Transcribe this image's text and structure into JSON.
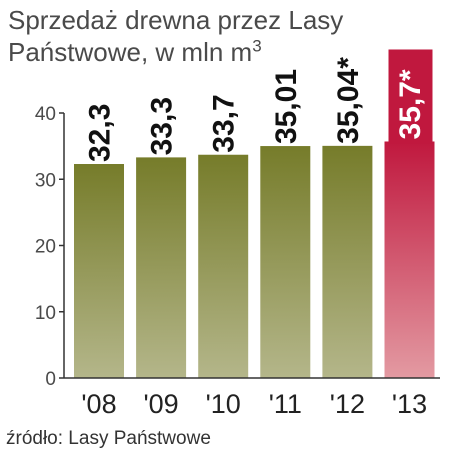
{
  "title": {
    "line1": "Sprzedaż drewna przez Lasy",
    "line2": "Państwowe, w mln m",
    "unit_exponent": "3"
  },
  "source": "źródło: Lasy Państwowe",
  "colors": {
    "bar_top": "#767c2a",
    "bar_bottom": "#b4b68a",
    "highlight_top": "#c0183e",
    "highlight_bottom": "#e39aa2",
    "highlight_label_bg": "#c0183e",
    "axis": "#333333"
  },
  "chart_data": {
    "type": "bar",
    "categories": [
      "'08",
      "'09",
      "'10",
      "'11",
      "'12",
      "'13"
    ],
    "values": [
      32.3,
      33.3,
      33.7,
      35.01,
      35.04,
      35.7
    ],
    "value_labels": [
      "32,3",
      "33,3",
      "33,7",
      "35,01",
      "35,04*",
      "35,7*"
    ],
    "highlight_index": 5,
    "ylim": [
      0,
      40
    ],
    "yticks": [
      0,
      10,
      20,
      30,
      40
    ],
    "grid": false,
    "title": "Sprzedaż drewna przez Lasy Państwowe, w mln m3",
    "xlabel": "",
    "ylabel": ""
  }
}
